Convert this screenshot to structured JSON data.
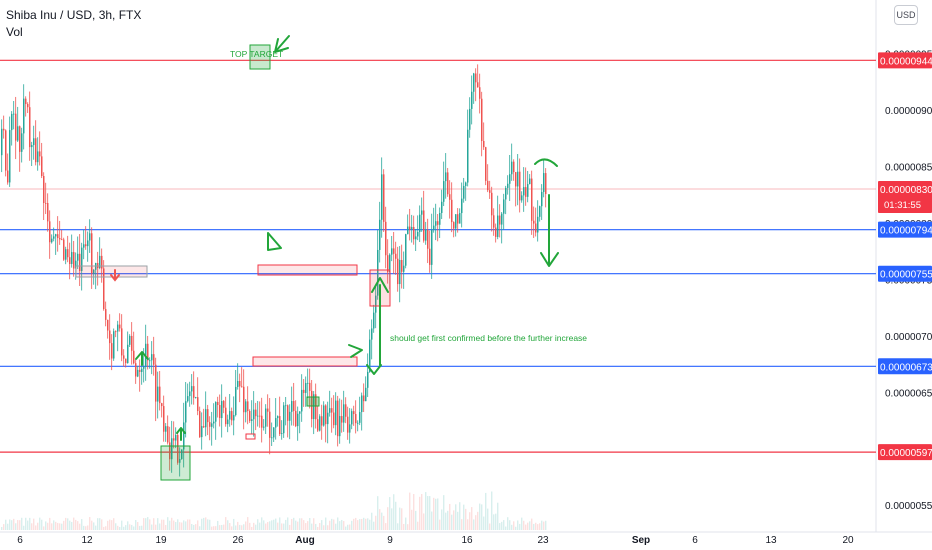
{
  "header": {
    "symbol": "Shiba Inu / USD, 3h, FTX",
    "volume_label": "Vol",
    "currency_button": "USD"
  },
  "chart_data": {
    "type": "candlestick",
    "title": "Shiba Inu / USD, 3h, FTX",
    "ylim": [
      5.28e-06,
      9.62e-06
    ],
    "y_ticks": [
      "0.00000950",
      "0.00000900",
      "0.00000850",
      "0.00000800",
      "0.00000750",
      "0.00000700",
      "0.00000650",
      "0.00000600",
      "0.00000550"
    ],
    "x_ticks": [
      "6",
      "12",
      "19",
      "26",
      "Aug",
      "9",
      "16",
      "23",
      "Sep",
      "6",
      "13",
      "20"
    ],
    "price_path": [
      [
        0,
        8.6e-06
      ],
      [
        2,
        8.8e-06
      ],
      [
        6,
        8.3e-06
      ],
      [
        9,
        8.9e-06
      ],
      [
        12,
        9.1e-06
      ],
      [
        16,
        8.8e-06
      ],
      [
        20,
        8.7e-06
      ],
      [
        25,
        9.2e-06
      ],
      [
        29,
        8.7e-06
      ],
      [
        33,
        8.6e-06
      ],
      [
        38,
        8.7e-06
      ],
      [
        42,
        8.3e-06
      ],
      [
        46,
        8.2e-06
      ],
      [
        50,
        7.9e-06
      ],
      [
        55,
        7.8e-06
      ],
      [
        62,
        7.8e-06
      ],
      [
        70,
        7.7e-06
      ],
      [
        78,
        7.6e-06
      ],
      [
        84,
        7.7e-06
      ],
      [
        88,
        7.9e-06
      ],
      [
        94,
        7.5e-06
      ],
      [
        100,
        7.6e-06
      ],
      [
        105,
        7.2e-06
      ],
      [
        110,
        6.9e-06
      ],
      [
        116,
        7.1e-06
      ],
      [
        122,
        6.8e-06
      ],
      [
        128,
        6.9e-06
      ],
      [
        134,
        6.7e-06
      ],
      [
        140,
        6.8e-06
      ],
      [
        148,
        6.9e-06
      ],
      [
        154,
        6.6e-06
      ],
      [
        160,
        6.4e-06
      ],
      [
        166,
        6.2e-06
      ],
      [
        170,
        6e-06
      ],
      [
        176,
        6e-06
      ],
      [
        182,
        6.1e-06
      ],
      [
        186,
        6.4e-06
      ],
      [
        190,
        6.6e-06
      ],
      [
        196,
        6.3e-06
      ],
      [
        202,
        6.2e-06
      ],
      [
        208,
        6.3e-06
      ],
      [
        214,
        6.4e-06
      ],
      [
        220,
        6.3e-06
      ],
      [
        226,
        6.2e-06
      ],
      [
        232,
        6.4e-06
      ],
      [
        238,
        6.6e-06
      ],
      [
        244,
        6.4e-06
      ],
      [
        250,
        6.3e-06
      ],
      [
        256,
        6.2e-06
      ],
      [
        262,
        6.3e-06
      ],
      [
        268,
        6.2e-06
      ],
      [
        274,
        6.3e-06
      ],
      [
        280,
        6.2e-06
      ],
      [
        286,
        6.3e-06
      ],
      [
        292,
        6.4e-06
      ],
      [
        298,
        6.3e-06
      ],
      [
        304,
        6.5e-06
      ],
      [
        310,
        6.4e-06
      ],
      [
        316,
        6.3e-06
      ],
      [
        322,
        6.3e-06
      ],
      [
        328,
        6.2e-06
      ],
      [
        334,
        6.3e-06
      ],
      [
        340,
        6.2e-06
      ],
      [
        346,
        6.3e-06
      ],
      [
        352,
        6.2e-06
      ],
      [
        358,
        6.3e-06
      ],
      [
        362,
        6.4e-06
      ],
      [
        366,
        6.6e-06
      ],
      [
        370,
        7e-06
      ],
      [
        374,
        7.3e-06
      ],
      [
        378,
        8e-06
      ],
      [
        381,
        8.3e-06
      ],
      [
        384,
        7.9e-06
      ],
      [
        388,
        7.5e-06
      ],
      [
        392,
        7.8e-06
      ],
      [
        398,
        7.5e-06
      ],
      [
        404,
        7.8e-06
      ],
      [
        410,
        8.1e-06
      ],
      [
        416,
        7.9e-06
      ],
      [
        422,
        8e-06
      ],
      [
        428,
        7.7e-06
      ],
      [
        434,
        8e-06
      ],
      [
        440,
        8.1e-06
      ],
      [
        446,
        8.4e-06
      ],
      [
        452,
        8.1e-06
      ],
      [
        458,
        8e-06
      ],
      [
        462,
        8.1e-06
      ],
      [
        466,
        8.5e-06
      ],
      [
        470,
        9.2e-06
      ],
      [
        474,
        9.4e-06
      ],
      [
        478,
        9.1e-06
      ],
      [
        482,
        8.8e-06
      ],
      [
        486,
        8.3e-06
      ],
      [
        490,
        8.1e-06
      ],
      [
        494,
        8e-06
      ],
      [
        498,
        7.9e-06
      ],
      [
        502,
        8.1e-06
      ],
      [
        506,
        8.2e-06
      ],
      [
        510,
        8.4e-06
      ],
      [
        514,
        8.5e-06
      ],
      [
        518,
        8.3e-06
      ],
      [
        522,
        8.1e-06
      ],
      [
        526,
        8.4e-06
      ],
      [
        530,
        8.2e-06
      ],
      [
        534,
        8e-06
      ],
      [
        538,
        8.2e-06
      ],
      [
        542,
        8.4e-06
      ],
      [
        546,
        8.3e-06
      ]
    ],
    "horizontal_levels": [
      {
        "price": 9.44e-06,
        "color": "#f23645",
        "label": "0.00000944"
      },
      {
        "price": 7.94e-06,
        "color": "#2962ff",
        "label": "0.00000794"
      },
      {
        "price": 7.55e-06,
        "color": "#2962ff",
        "label": "0.00000755"
      },
      {
        "price": 6.73e-06,
        "color": "#2962ff",
        "label": "0.00000673"
      },
      {
        "price": 5.97e-06,
        "color": "#f23645",
        "label": "0.00000597"
      }
    ],
    "current_price": {
      "price": 8.3e-06,
      "label": "0.00000830",
      "countdown": "01:31:55",
      "color": "#f23645"
    },
    "annotations": [
      {
        "type": "text",
        "text": "TOP TARGET",
        "color": "#22a63a"
      },
      {
        "type": "text",
        "text": "should get first confirmed before the further increase",
        "color": "#22a63a"
      }
    ],
    "grid": false
  },
  "colors": {
    "up": "#26a69a",
    "down": "#ef5350",
    "annotation_green": "#22a63a",
    "line_red": "#f23645",
    "line_blue": "#2962ff"
  }
}
